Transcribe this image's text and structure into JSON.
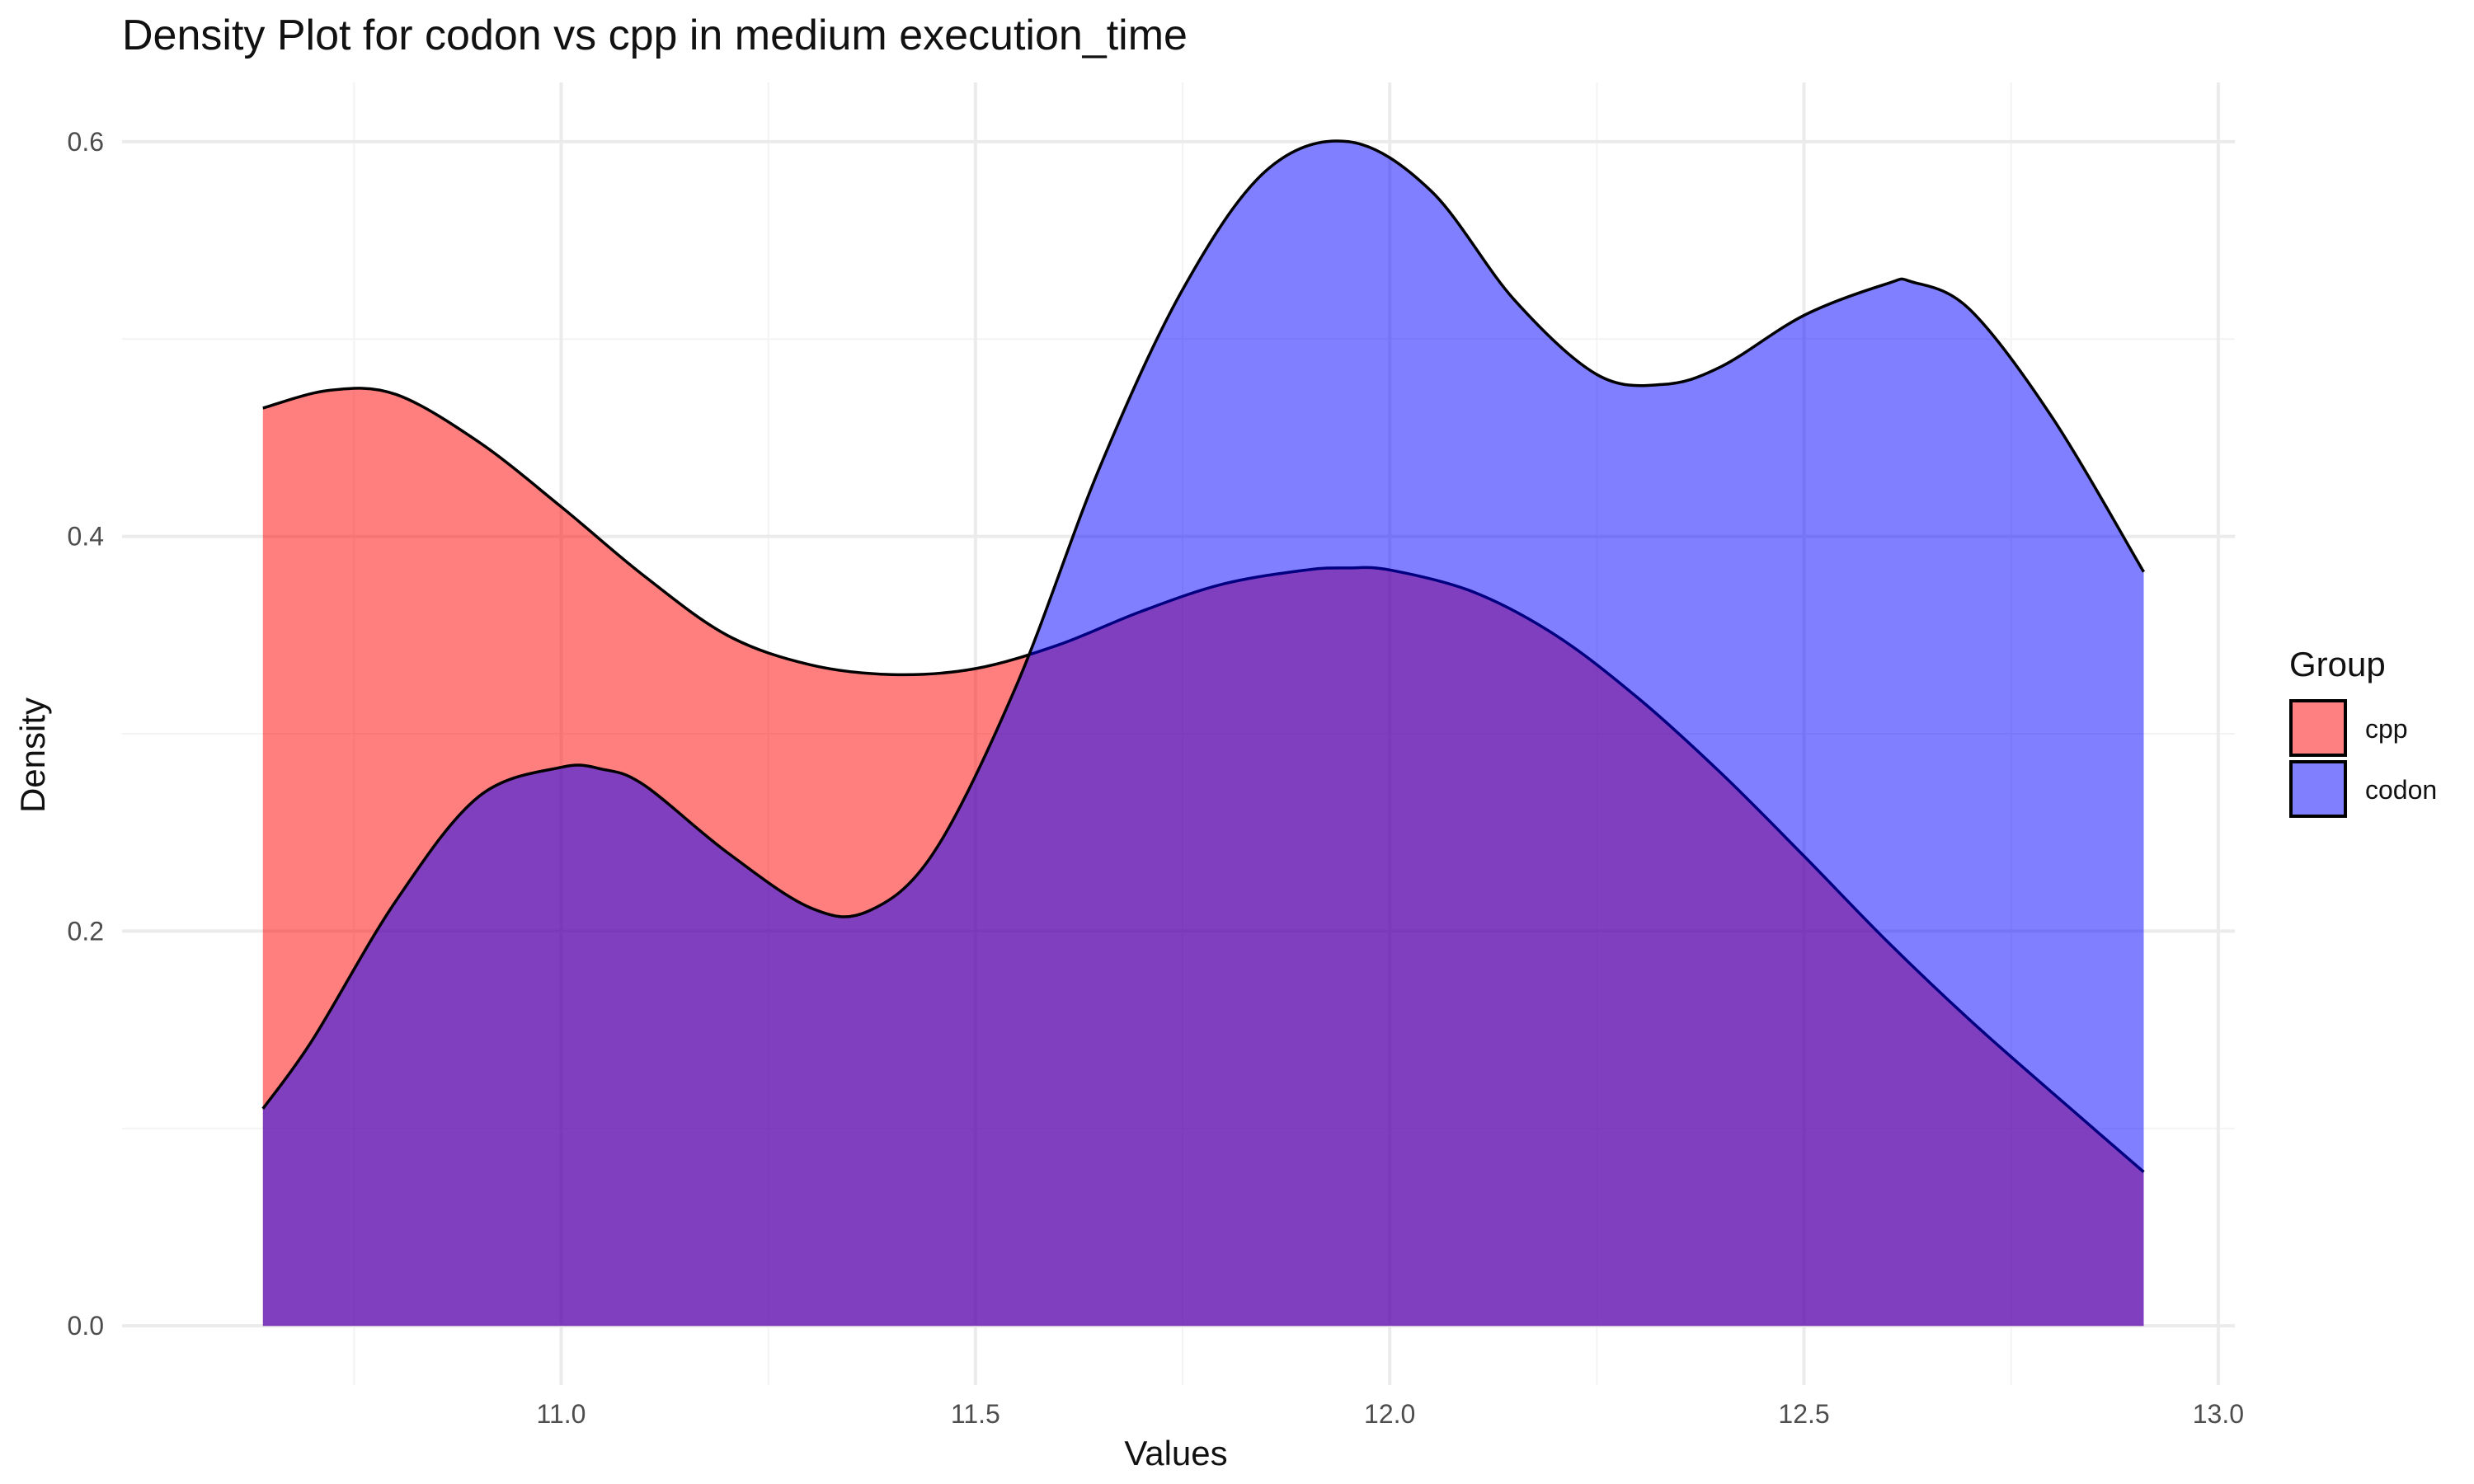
{
  "chart_data": {
    "type": "area",
    "subtype": "density",
    "title": "Density Plot for codon vs cpp in medium execution_time",
    "xlabel": "Values",
    "ylabel": "Density",
    "xlim": [
      10.47,
      13.02
    ],
    "ylim": [
      -0.03,
      0.63
    ],
    "x_ticks": [
      11.0,
      11.5,
      12.0,
      12.5,
      13.0
    ],
    "x_tick_labels": [
      "11.0",
      "11.5",
      "12.0",
      "12.5",
      "13.0"
    ],
    "y_ticks": [
      0.0,
      0.2,
      0.4,
      0.6
    ],
    "y_tick_labels": [
      "0.0",
      "0.2",
      "0.4",
      "0.6"
    ],
    "grid": true,
    "legend": {
      "title": "Group",
      "position": "right",
      "entries": [
        {
          "label": "cpp",
          "color": "#ff8080"
        },
        {
          "label": "codon",
          "color": "#8080ff"
        }
      ]
    },
    "series": [
      {
        "name": "cpp",
        "color": "#ff0000",
        "opacity": 0.5,
        "x": [
          10.64,
          10.72,
          10.8,
          10.9,
          11.0,
          11.1,
          11.2,
          11.3,
          11.4,
          11.5,
          11.6,
          11.7,
          11.8,
          11.9,
          11.95,
          12.0,
          12.1,
          12.2,
          12.3,
          12.4,
          12.5,
          12.6,
          12.7,
          12.8,
          12.91
        ],
        "y": [
          0.465,
          0.474,
          0.472,
          0.448,
          0.415,
          0.38,
          0.35,
          0.335,
          0.33,
          0.333,
          0.345,
          0.362,
          0.376,
          0.383,
          0.384,
          0.383,
          0.372,
          0.35,
          0.318,
          0.28,
          0.238,
          0.195,
          0.155,
          0.118,
          0.078
        ]
      },
      {
        "name": "codon",
        "color": "#0000ff",
        "opacity": 0.5,
        "x": [
          10.64,
          10.7,
          10.8,
          10.9,
          11.0,
          11.05,
          11.1,
          11.2,
          11.3,
          11.37,
          11.45,
          11.55,
          11.65,
          11.75,
          11.85,
          11.95,
          12.05,
          12.15,
          12.25,
          12.33,
          12.4,
          12.5,
          12.6,
          12.63,
          12.7,
          12.8,
          12.91
        ],
        "y": [
          0.11,
          0.145,
          0.215,
          0.268,
          0.283,
          0.282,
          0.274,
          0.24,
          0.212,
          0.21,
          0.24,
          0.325,
          0.435,
          0.525,
          0.585,
          0.6,
          0.575,
          0.52,
          0.482,
          0.477,
          0.486,
          0.512,
          0.528,
          0.529,
          0.515,
          0.46,
          0.382
        ]
      }
    ]
  }
}
